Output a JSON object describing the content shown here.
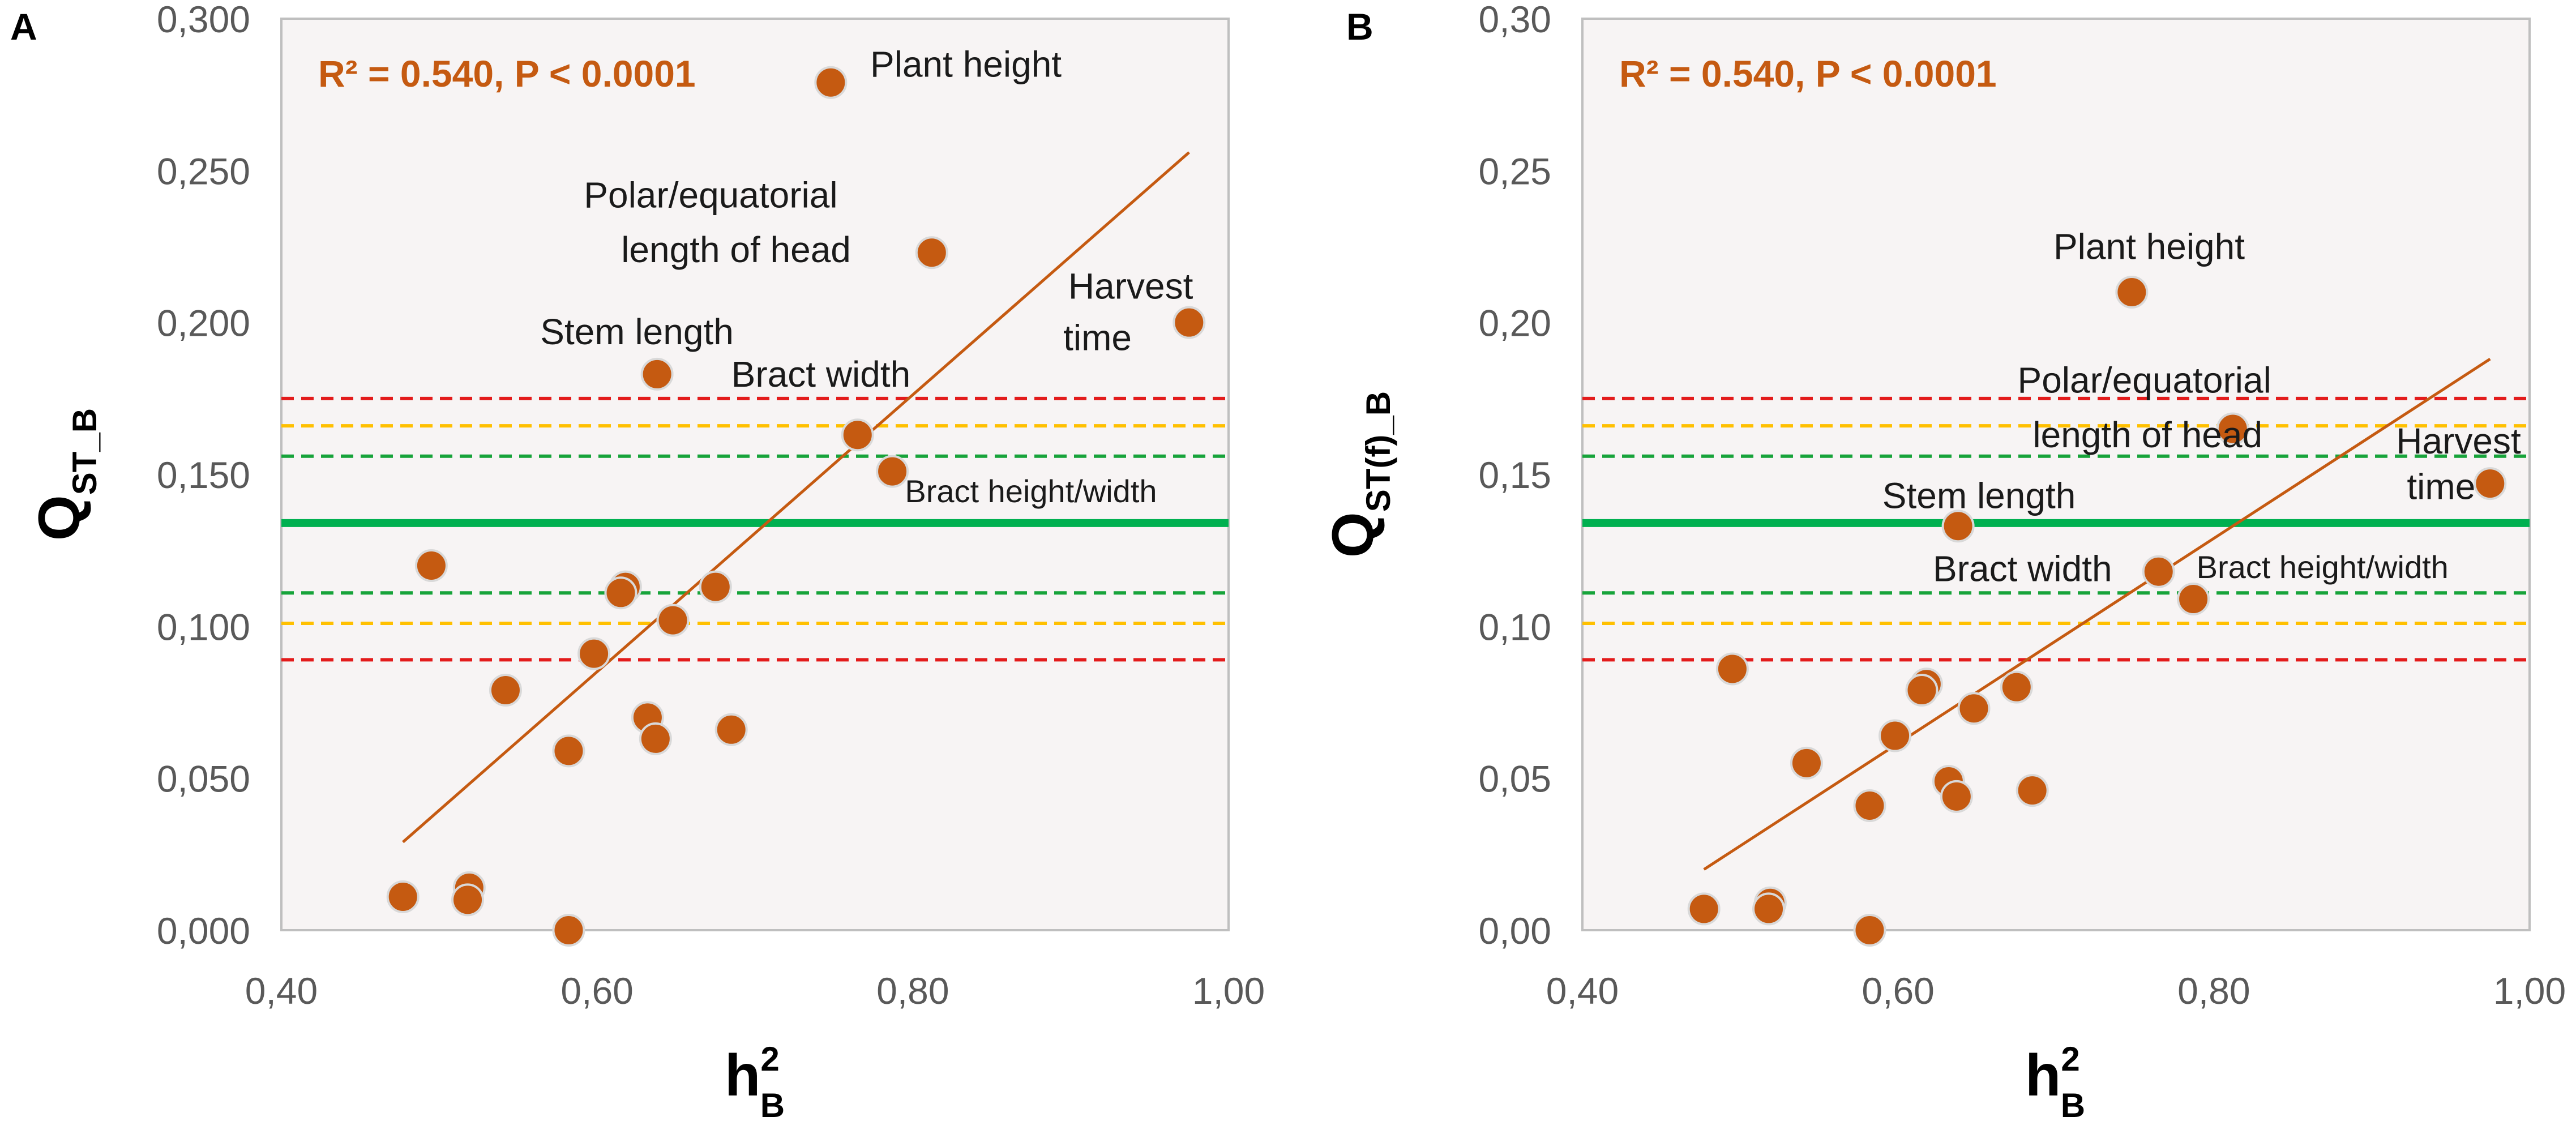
{
  "colors": {
    "point_fill": "#c55a11",
    "point_stroke": "#d9d9d9",
    "trend": "#c55a11",
    "annotation": "#c55a11",
    "red_dash": "#e31b1b",
    "orange_dash": "#ffc000",
    "green_dash": "#17a33a",
    "green_solid": "#00b050",
    "plot_bg": "#f7f4f4",
    "axis_border": "#bfbfbf",
    "tick_text": "#595959"
  },
  "chart_data": [
    {
      "type": "scatter",
      "panel_label": "A",
      "annotation": "R² = 0.540, P < 0.0001",
      "ylabel": "Q",
      "ylabel_sub": "ST_B",
      "xlabel": "h",
      "xlabel_sup": "2",
      "xlabel_sub": "B",
      "xlim": [
        0.4,
        1.0
      ],
      "ylim": [
        0.0,
        0.3
      ],
      "xticks": [
        0.4,
        0.6,
        0.8,
        1.0
      ],
      "xtick_labels": [
        "0,40",
        "0,60",
        "0,80",
        "1,00"
      ],
      "yticks": [
        0,
        0.05,
        0.1,
        0.15,
        0.2,
        0.25,
        0.3
      ],
      "ytick_labels": [
        "0,000",
        "0,050",
        "0,100",
        "0,150",
        "0,200",
        "0,250",
        "0,300"
      ],
      "trend": {
        "x": [
          0.477,
          0.975
        ],
        "y": [
          0.029,
          0.256
        ]
      },
      "hlines": [
        {
          "y": 0.134,
          "style": "solid",
          "color": "green"
        },
        {
          "y": 0.175,
          "style": "dashed",
          "color": "red"
        },
        {
          "y": 0.166,
          "style": "dashed",
          "color": "orange"
        },
        {
          "y": 0.156,
          "style": "dashed",
          "color": "green"
        },
        {
          "y": 0.111,
          "style": "dashed",
          "color": "green"
        },
        {
          "y": 0.101,
          "style": "dashed",
          "color": "orange"
        },
        {
          "y": 0.089,
          "style": "dashed",
          "color": "red"
        }
      ],
      "points": [
        {
          "x": 0.748,
          "y": 0.279
        },
        {
          "x": 0.812,
          "y": 0.223
        },
        {
          "x": 0.975,
          "y": 0.2
        },
        {
          "x": 0.638,
          "y": 0.183
        },
        {
          "x": 0.765,
          "y": 0.163
        },
        {
          "x": 0.787,
          "y": 0.151
        },
        {
          "x": 0.495,
          "y": 0.12
        },
        {
          "x": 0.618,
          "y": 0.113
        },
        {
          "x": 0.615,
          "y": 0.111
        },
        {
          "x": 0.675,
          "y": 0.113
        },
        {
          "x": 0.648,
          "y": 0.102
        },
        {
          "x": 0.598,
          "y": 0.091
        },
        {
          "x": 0.542,
          "y": 0.079
        },
        {
          "x": 0.632,
          "y": 0.07
        },
        {
          "x": 0.685,
          "y": 0.066
        },
        {
          "x": 0.637,
          "y": 0.063
        },
        {
          "x": 0.582,
          "y": 0.059
        },
        {
          "x": 0.477,
          "y": 0.011
        },
        {
          "x": 0.519,
          "y": 0.014
        },
        {
          "x": 0.518,
          "y": 0.01
        },
        {
          "x": 0.582,
          "y": 0.0
        }
      ],
      "labels": [
        {
          "text": "Plant height",
          "x": 0.773,
          "y": 0.285,
          "anchor": "start"
        },
        {
          "text": "Polar/equatorial",
          "x": 0.672,
          "y": 0.242,
          "anchor": "middle"
        },
        {
          "text": "length of head",
          "x": 0.688,
          "y": 0.224,
          "anchor": "middle"
        },
        {
          "text": "Harvest",
          "x": 0.938,
          "y": 0.212,
          "anchor": "middle"
        },
        {
          "text": "time",
          "x": 0.917,
          "y": 0.195,
          "anchor": "middle"
        },
        {
          "text": "Stem length",
          "x": 0.564,
          "y": 0.197,
          "anchor": "start"
        },
        {
          "text": "Bract width",
          "x": 0.685,
          "y": 0.183,
          "anchor": "start"
        },
        {
          "text": "Bract height/width",
          "x": 0.795,
          "y": 0.145,
          "anchor": "start"
        }
      ]
    },
    {
      "type": "scatter",
      "panel_label": "B",
      "annotation": "R² = 0.540, P < 0.0001",
      "ylabel": "Q",
      "ylabel_sub": "ST(f)_B",
      "xlabel": "h",
      "xlabel_sup": "2",
      "xlabel_sub": "B",
      "xlim": [
        0.4,
        1.0
      ],
      "ylim": [
        0.0,
        0.3
      ],
      "xticks": [
        0.4,
        0.6,
        0.8,
        1.0
      ],
      "xtick_labels": [
        "0,40",
        "0,60",
        "0,80",
        "1,00"
      ],
      "yticks": [
        0,
        0.05,
        0.1,
        0.15,
        0.2,
        0.25,
        0.3
      ],
      "ytick_labels": [
        "0,00",
        "0,05",
        "0,10",
        "0,15",
        "0,20",
        "0,25",
        "0,30"
      ],
      "trend": {
        "x": [
          0.477,
          0.975
        ],
        "y": [
          0.02,
          0.188
        ]
      },
      "hlines": [
        {
          "y": 0.134,
          "style": "solid",
          "color": "green"
        },
        {
          "y": 0.175,
          "style": "dashed",
          "color": "red"
        },
        {
          "y": 0.166,
          "style": "dashed",
          "color": "orange"
        },
        {
          "y": 0.156,
          "style": "dashed",
          "color": "green"
        },
        {
          "y": 0.111,
          "style": "dashed",
          "color": "green"
        },
        {
          "y": 0.101,
          "style": "dashed",
          "color": "orange"
        },
        {
          "y": 0.089,
          "style": "dashed",
          "color": "red"
        }
      ],
      "points": [
        {
          "x": 0.748,
          "y": 0.21
        },
        {
          "x": 0.812,
          "y": 0.165
        },
        {
          "x": 0.975,
          "y": 0.147
        },
        {
          "x": 0.638,
          "y": 0.133
        },
        {
          "x": 0.765,
          "y": 0.118
        },
        {
          "x": 0.787,
          "y": 0.109
        },
        {
          "x": 0.495,
          "y": 0.086
        },
        {
          "x": 0.618,
          "y": 0.081
        },
        {
          "x": 0.615,
          "y": 0.079
        },
        {
          "x": 0.675,
          "y": 0.08
        },
        {
          "x": 0.648,
          "y": 0.073
        },
        {
          "x": 0.598,
          "y": 0.064
        },
        {
          "x": 0.542,
          "y": 0.055
        },
        {
          "x": 0.632,
          "y": 0.049
        },
        {
          "x": 0.685,
          "y": 0.046
        },
        {
          "x": 0.637,
          "y": 0.044
        },
        {
          "x": 0.582,
          "y": 0.041
        },
        {
          "x": 0.477,
          "y": 0.007
        },
        {
          "x": 0.519,
          "y": 0.009
        },
        {
          "x": 0.518,
          "y": 0.007
        },
        {
          "x": 0.582,
          "y": 0.0
        }
      ],
      "labels": [
        {
          "text": "Plant height",
          "x": 0.759,
          "y": 0.225,
          "anchor": "middle"
        },
        {
          "text": "Polar/equatorial",
          "x": 0.756,
          "y": 0.181,
          "anchor": "middle"
        },
        {
          "text": "length of head",
          "x": 0.758,
          "y": 0.163,
          "anchor": "middle"
        },
        {
          "text": "Harvest",
          "x": 0.955,
          "y": 0.161,
          "anchor": "middle"
        },
        {
          "text": "time",
          "x": 0.944,
          "y": 0.146,
          "anchor": "middle"
        },
        {
          "text": "Stem length",
          "x": 0.59,
          "y": 0.143,
          "anchor": "start"
        },
        {
          "text": "Bract width",
          "x": 0.622,
          "y": 0.119,
          "anchor": "start"
        },
        {
          "text": "Bract height/width",
          "x": 0.789,
          "y": 0.12,
          "anchor": "start"
        }
      ]
    }
  ]
}
